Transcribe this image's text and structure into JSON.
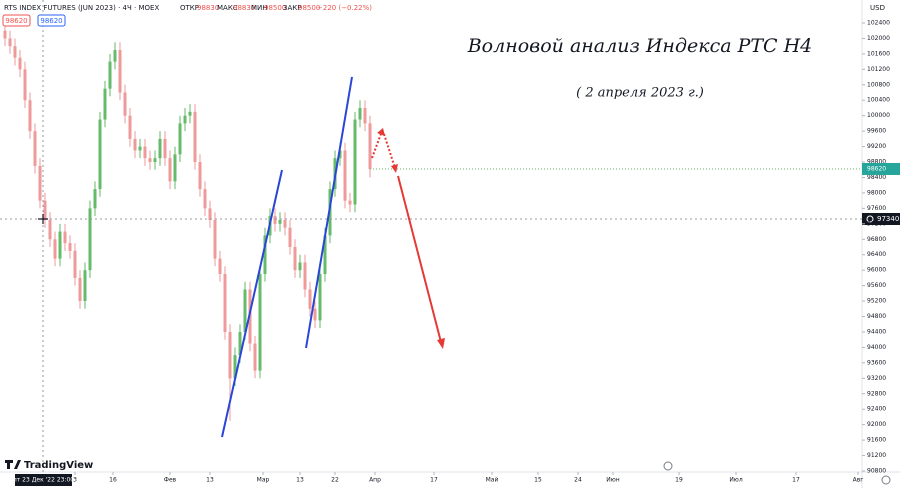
{
  "chart_data": {
    "type": "candlestick",
    "title": "Волновой анализ Индекса РТС H4",
    "subtitle": "( 2 апреля 2023 г.)",
    "header": {
      "symbol": "RTS INDEX FUTURES (JUN 2023) · 4Ч · MOEX",
      "open_label": "ОТКР",
      "open": 98830,
      "high_label": "МАКС",
      "high": 98830,
      "low_label": "МИН",
      "low": 98500,
      "close_label": "ЗАКР",
      "close": 98500,
      "change": "−220 (−0.22%)",
      "bid": 98620,
      "ask": 98620
    },
    "currency": "USD",
    "crosshair": {
      "price": 97340,
      "date": "пт 23 Дек '22 23:00"
    },
    "brand": "TradingView",
    "up_color": "#66bb6a",
    "down_color": "#ef9a9a",
    "x": [
      1,
      2,
      3,
      4,
      5,
      6,
      7,
      8,
      9,
      10,
      11,
      12,
      13,
      14,
      15,
      16,
      17,
      18,
      19,
      20,
      21,
      22,
      23,
      24,
      25,
      26,
      27,
      28,
      29,
      30,
      31,
      32,
      33,
      34,
      35,
      36,
      37,
      38,
      39,
      40,
      41,
      42,
      43,
      44,
      45,
      46,
      47,
      48,
      49,
      50,
      51,
      52,
      53,
      54,
      55,
      56,
      57,
      58,
      59,
      60,
      61,
      62,
      63,
      64,
      65,
      66,
      67,
      68,
      69,
      70,
      71,
      72,
      73,
      74
    ],
    "open": [
      102200,
      102000,
      101800,
      101500,
      101200,
      100400,
      99600,
      98700,
      97800,
      97300,
      96800,
      96300,
      97000,
      96700,
      96500,
      95800,
      95200,
      96000,
      97600,
      98100,
      99900,
      100700,
      101400,
      101700,
      100600,
      100000,
      99400,
      99100,
      99200,
      98900,
      98800,
      98900,
      99400,
      98900,
      98300,
      99000,
      99800,
      100000,
      100100,
      98800,
      98100,
      97600,
      97300,
      96300,
      95900,
      94400,
      93200,
      93800,
      94400,
      95500,
      94100,
      93400,
      95900,
      96900,
      97400,
      97200,
      97300,
      97100,
      96600,
      96000,
      96200,
      95500,
      95000,
      94700,
      95900,
      96900,
      98100,
      98900,
      99100,
      97800,
      97700,
      99900,
      100200,
      99800
    ],
    "high": [
      102400,
      102200,
      102000,
      101700,
      101400,
      100600,
      99800,
      98900,
      98000,
      97500,
      97000,
      97200,
      97200,
      96900,
      96700,
      96000,
      96200,
      97800,
      98300,
      100100,
      100900,
      101600,
      101900,
      101900,
      100800,
      100200,
      99600,
      99400,
      99400,
      99100,
      99100,
      99600,
      99600,
      99100,
      99200,
      100000,
      100200,
      100300,
      100300,
      99000,
      98300,
      97800,
      97500,
      96500,
      96100,
      94600,
      94000,
      94600,
      95700,
      95700,
      94300,
      96100,
      97100,
      97600,
      97600,
      97500,
      97500,
      97300,
      96800,
      96400,
      96400,
      95700,
      95200,
      96100,
      97100,
      98300,
      99100,
      99300,
      99300,
      98000,
      100100,
      100400,
      100400,
      100000
    ],
    "low": [
      101800,
      101600,
      101300,
      101000,
      100200,
      99400,
      98500,
      97600,
      97100,
      96600,
      96100,
      96100,
      96500,
      96300,
      95600,
      95000,
      95000,
      95800,
      97400,
      97900,
      99700,
      100500,
      101200,
      100400,
      99800,
      99200,
      98900,
      98900,
      98700,
      98600,
      98600,
      98700,
      98700,
      98100,
      98100,
      98800,
      99600,
      99800,
      98600,
      97900,
      97400,
      97100,
      96100,
      95700,
      94200,
      92100,
      93000,
      93600,
      94200,
      93900,
      93200,
      93200,
      95700,
      96700,
      97000,
      97000,
      96900,
      96400,
      95800,
      95800,
      95300,
      94800,
      94500,
      94500,
      95700,
      96700,
      97900,
      98700,
      97600,
      97500,
      97500,
      99700,
      99600,
      98400
    ],
    "close": [
      102000,
      101800,
      101500,
      101200,
      100400,
      99600,
      98700,
      97800,
      97300,
      96800,
      96300,
      97000,
      96700,
      96500,
      95800,
      95200,
      96000,
      97600,
      98100,
      99900,
      100700,
      101400,
      101700,
      100600,
      100000,
      99400,
      99100,
      99200,
      98900,
      98800,
      98900,
      99400,
      98900,
      98300,
      99000,
      99800,
      100000,
      100100,
      98800,
      98100,
      97600,
      97300,
      96300,
      95900,
      94400,
      93200,
      93800,
      94400,
      95500,
      94100,
      93400,
      95900,
      96900,
      97400,
      97200,
      97300,
      97100,
      96600,
      96000,
      96200,
      95500,
      95000,
      94700,
      95900,
      96900,
      98100,
      98900,
      99100,
      97800,
      97700,
      99900,
      100200,
      99800,
      98620
    ],
    "xlim": [
      0,
      172.4
    ],
    "xticks": [
      {
        "value": 15,
        "label": "3"
      },
      {
        "value": 22.6,
        "label": "16"
      },
      {
        "value": 34,
        "label": "Фев"
      },
      {
        "value": 42,
        "label": "13"
      },
      {
        "value": 52.6,
        "label": "Мар"
      },
      {
        "value": 60,
        "label": "13"
      },
      {
        "value": 67,
        "label": "22"
      },
      {
        "value": 75,
        "label": "Апр"
      },
      {
        "value": 86.8,
        "label": "17"
      },
      {
        "value": 98.4,
        "label": "Май"
      },
      {
        "value": 107.6,
        "label": "15"
      },
      {
        "value": 115.6,
        "label": "24"
      },
      {
        "value": 122.6,
        "label": "Июн"
      },
      {
        "value": 135.8,
        "label": "19"
      },
      {
        "value": 147.2,
        "label": "Июл"
      },
      {
        "value": 159.2,
        "label": "17"
      },
      {
        "value": 171.6,
        "label": "Авг"
      }
    ],
    "ylim": [
      90800,
      102400
    ],
    "yticks": [
      90800,
      91200,
      91600,
      92000,
      92400,
      92800,
      93200,
      93600,
      94000,
      94400,
      94800,
      95200,
      95600,
      96000,
      96400,
      96800,
      97200,
      97600,
      98000,
      98400,
      98800,
      99200,
      99600,
      100000,
      100400,
      100800,
      101200,
      101600,
      102000,
      102400
    ]
  }
}
